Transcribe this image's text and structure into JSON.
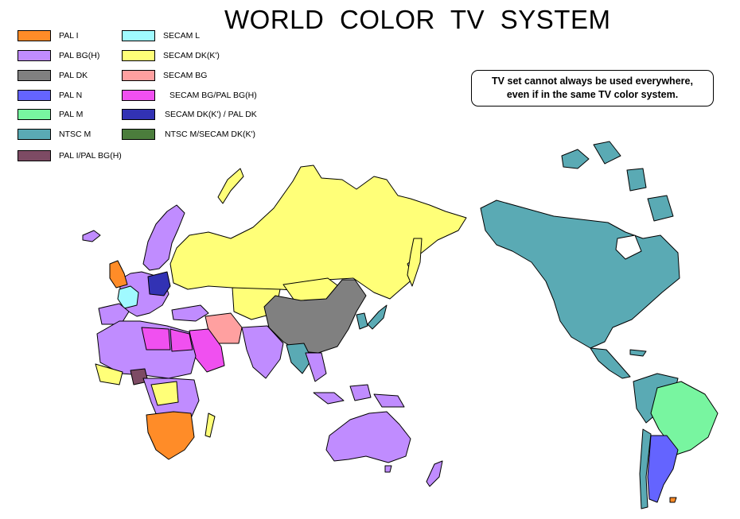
{
  "title": "WORLD  COLOR  TV  SYSTEM",
  "note": {
    "line1": "TV set cannot always be used everywhere,",
    "line2": "even if in the same TV color system."
  },
  "legend": [
    {
      "label": "PAL I",
      "color": "#FF8C28"
    },
    {
      "label": "PAL BG(H)",
      "color": "#C08CFF"
    },
    {
      "label": "PAL DK",
      "color": "#808080"
    },
    {
      "label": "PAL N",
      "color": "#6464FF"
    },
    {
      "label": "PAL M",
      "color": "#78F5A0"
    },
    {
      "label": "NTSC M",
      "color": "#5AAAB4"
    },
    {
      "label": "PAL I/PAL BG(H)",
      "color": "#7D4B64"
    },
    {
      "label": "SECAM L",
      "color": "#A0FAFF"
    },
    {
      "label": "SECAM DK(K')",
      "color": "#FFFF78"
    },
    {
      "label": "SECAM BG",
      "color": "#FFA0A0"
    },
    {
      "label": "SECAM BG/PAL BG(H)",
      "color": "#F050F0"
    },
    {
      "label": "SECAM DK(K') / PAL DK",
      "color": "#3232B4"
    },
    {
      "label": "NTSC M/SECAM DK(K')",
      "color": "#4B7D3C"
    }
  ]
}
